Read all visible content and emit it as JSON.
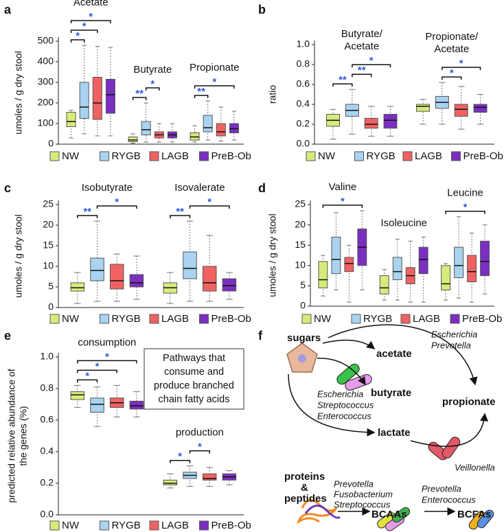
{
  "chart_data": [
    {
      "type": "box",
      "panel": "a",
      "ylabel": "umoles / g dry stool",
      "categories": [
        "Acetate",
        "Butyrate",
        "Propionate"
      ],
      "ylim": [
        0,
        500
      ],
      "yticks": [
        0,
        100,
        200,
        300,
        400,
        500
      ],
      "series": [
        {
          "name": "NW",
          "color": "#d5ec7c",
          "values": [
            [
              30,
              85,
              110,
              155,
              165
            ],
            [
              5,
              12,
              20,
              35,
              50
            ],
            [
              10,
              20,
              35,
              55,
              90
            ]
          ]
        },
        {
          "name": "RYGB",
          "color": "#a9d3f0",
          "values": [
            [
              50,
              125,
              180,
              300,
              480
            ],
            [
              10,
              45,
              70,
              110,
              200
            ],
            [
              20,
              60,
              80,
              140,
              210
            ]
          ]
        },
        {
          "name": "LAGB",
          "color": "#f06262",
          "values": [
            [
              40,
              120,
              200,
              325,
              475
            ],
            [
              10,
              30,
              45,
              60,
              100
            ],
            [
              15,
              40,
              60,
              100,
              180
            ]
          ]
        },
        {
          "name": "PreB-Ob",
          "color": "#7a2fc0",
          "values": [
            [
              40,
              150,
              240,
              315,
              470
            ],
            [
              10,
              30,
              45,
              60,
              100
            ],
            [
              20,
              55,
              75,
              100,
              160
            ]
          ]
        }
      ],
      "annotations": [
        {
          "group": 0,
          "from": 0,
          "to": 1,
          "label": "*"
        },
        {
          "group": 0,
          "from": 0,
          "to": 2,
          "label": "*"
        },
        {
          "group": 0,
          "from": 0,
          "to": 3,
          "label": "*"
        },
        {
          "group": 1,
          "from": 0,
          "to": 1,
          "label": "**"
        },
        {
          "group": 1,
          "from": 1,
          "to": 2,
          "label": "*"
        },
        {
          "group": 2,
          "from": 0,
          "to": 1,
          "label": "**"
        },
        {
          "group": 2,
          "from": 0,
          "to": 3,
          "label": "*"
        }
      ]
    },
    {
      "type": "box",
      "panel": "b",
      "ylabel": "ratio",
      "categories": [
        [
          "Butyrate/",
          "Acetate"
        ],
        [
          "Propionate/",
          "Acetate"
        ]
      ],
      "ylim": [
        0,
        1
      ],
      "yticks": [
        {
          "value": 0,
          "label": "0.0"
        },
        0.2,
        0.4,
        0.6,
        0.8,
        {
          "value": 1,
          "label": "1.0"
        }
      ],
      "series": [
        {
          "name": "NW",
          "color": "#d5ec7c",
          "values": [
            [
              0.05,
              0.18,
              0.24,
              0.3,
              0.35
            ],
            [
              0.2,
              0.33,
              0.38,
              0.4,
              0.45
            ]
          ]
        },
        {
          "name": "RYGB",
          "color": "#a9d3f0",
          "values": [
            [
              0.1,
              0.28,
              0.34,
              0.4,
              0.55
            ],
            [
              0.2,
              0.36,
              0.42,
              0.48,
              0.62
            ]
          ]
        },
        {
          "name": "LAGB",
          "color": "#f06262",
          "values": [
            [
              0.08,
              0.16,
              0.2,
              0.26,
              0.38
            ],
            [
              0.15,
              0.28,
              0.35,
              0.4,
              0.58
            ]
          ]
        },
        {
          "name": "PreB-Ob",
          "color": "#7a2fc0",
          "values": [
            [
              0.08,
              0.16,
              0.24,
              0.3,
              0.38
            ],
            [
              0.2,
              0.32,
              0.37,
              0.4,
              0.5
            ]
          ]
        }
      ],
      "annotations": [
        {
          "group": 0,
          "from": 0,
          "to": 1,
          "label": "**"
        },
        {
          "group": 0,
          "from": 1,
          "to": 2,
          "label": "**"
        },
        {
          "group": 0,
          "from": 1,
          "to": 3,
          "label": "*"
        },
        {
          "group": 1,
          "from": 1,
          "to": 2,
          "label": "*"
        },
        {
          "group": 1,
          "from": 1,
          "to": 3,
          "label": "*"
        }
      ]
    },
    {
      "type": "box",
      "panel": "c",
      "ylabel": "umoles / g dry stool",
      "categories": [
        "Isobutyrate",
        "Isovalerate"
      ],
      "ylim": [
        0,
        25
      ],
      "yticks": [
        0,
        5,
        10,
        15,
        20,
        25
      ],
      "series": [
        {
          "name": "NW",
          "color": "#d5ec7c",
          "values": [
            [
              1,
              4,
              4.8,
              6,
              8.5
            ],
            [
              1,
              3.5,
              4.8,
              6,
              8.5
            ]
          ]
        },
        {
          "name": "RYGB",
          "color": "#a9d3f0",
          "values": [
            [
              1.5,
              6.5,
              9,
              12,
              21
            ],
            [
              1.5,
              7,
              9.5,
              13.5,
              21
            ]
          ]
        },
        {
          "name": "LAGB",
          "color": "#f06262",
          "values": [
            [
              1.5,
              4.5,
              6.5,
              10.5,
              13
            ],
            [
              1.5,
              4,
              6,
              10,
              17.5
            ]
          ]
        },
        {
          "name": "PreB-Ob",
          "color": "#7a2fc0",
          "values": [
            [
              2,
              5,
              6,
              8,
              12.5
            ],
            [
              2,
              4,
              5.3,
              7,
              8.5
            ]
          ]
        }
      ],
      "annotations": [
        {
          "group": 0,
          "from": 0,
          "to": 1,
          "label": "**"
        },
        {
          "group": 0,
          "from": 1,
          "to": 3,
          "label": "*"
        },
        {
          "group": 1,
          "from": 0,
          "to": 1,
          "label": "**"
        },
        {
          "group": 1,
          "from": 1,
          "to": 3,
          "label": "*"
        }
      ]
    },
    {
      "type": "box",
      "panel": "d",
      "ylabel": "umoles / g dry stool",
      "categories": [
        "Valine",
        "Isoleucine",
        "Leucine"
      ],
      "ylim": [
        0,
        25
      ],
      "yticks": [
        0,
        5,
        10,
        15,
        20,
        25
      ],
      "series": [
        {
          "name": "NW",
          "color": "#d5ec7c",
          "values": [
            [
              2.5,
              4.5,
              6.5,
              11,
              12.5
            ],
            [
              1.5,
              3,
              4.5,
              7.5,
              9
            ],
            [
              1.5,
              4,
              5.5,
              10,
              10.5
            ]
          ]
        },
        {
          "name": "RYGB",
          "color": "#a9d3f0",
          "values": [
            [
              4,
              8,
              11.5,
              17,
              23
            ],
            [
              1.5,
              6.5,
              8.5,
              12,
              16.5
            ],
            [
              2,
              7,
              10,
              14.5,
              22
            ]
          ]
        },
        {
          "name": "LAGB",
          "color": "#f06262",
          "values": [
            [
              1,
              8.5,
              10.5,
              12,
              15
            ],
            [
              1,
              5.5,
              7.5,
              9.5,
              16
            ],
            [
              1,
              6,
              8.5,
              12.5,
              18
            ]
          ]
        },
        {
          "name": "PreB-Ob",
          "color": "#7a2fc0",
          "values": [
            [
              4,
              10,
              14.5,
              19,
              23.5
            ],
            [
              1,
              8,
              11.5,
              14.5,
              17
            ],
            [
              3,
              7.5,
              11,
              16,
              20
            ]
          ]
        }
      ],
      "annotations": [
        {
          "group": 0,
          "from": 0,
          "to": 3,
          "label": "*"
        },
        {
          "group": 2,
          "from": 0,
          "to": 3,
          "label": "*"
        }
      ]
    },
    {
      "type": "box",
      "panel": "e",
      "ylabel": [
        "predicted relative abundance of",
        "the genes (%)"
      ],
      "categories": [
        "consumption",
        "production"
      ],
      "ylim": [
        0,
        1
      ],
      "yticks": [
        {
          "value": 0,
          "label": "0.0"
        },
        0.2,
        0.4,
        0.6,
        0.8,
        {
          "value": 1,
          "label": "1.0"
        }
      ],
      "note": [
        "Pathways that",
        "consume and",
        "produce branched",
        "chain fatty acids"
      ],
      "series": [
        {
          "name": "NW",
          "color": "#d5ec7c",
          "values": [
            [
              0.68,
              0.73,
              0.76,
              0.78,
              0.82
            ],
            [
              0.17,
              0.19,
              0.2,
              0.22,
              0.26
            ]
          ]
        },
        {
          "name": "RYGB",
          "color": "#a9d3f0",
          "values": [
            [
              0.56,
              0.65,
              0.7,
              0.74,
              0.81
            ],
            [
              0.18,
              0.23,
              0.25,
              0.27,
              0.31
            ]
          ]
        },
        {
          "name": "LAGB",
          "color": "#f06262",
          "values": [
            [
              0.62,
              0.68,
              0.71,
              0.74,
              0.82
            ],
            [
              0.18,
              0.22,
              0.23,
              0.26,
              0.3
            ]
          ]
        },
        {
          "name": "PreB-Ob",
          "color": "#7a2fc0",
          "values": [
            [
              0.62,
              0.67,
              0.69,
              0.72,
              0.78
            ],
            [
              0.19,
              0.22,
              0.24,
              0.26,
              0.28
            ]
          ]
        }
      ],
      "annotations": [
        {
          "group": 0,
          "from": 0,
          "to": 1,
          "label": "*"
        },
        {
          "group": 0,
          "from": 0,
          "to": 2,
          "label": "*"
        },
        {
          "group": 0,
          "from": 0,
          "to": 3,
          "label": "*"
        },
        {
          "group": 1,
          "from": 0,
          "to": 1,
          "label": "*"
        },
        {
          "group": 1,
          "from": 1,
          "to": 2,
          "label": "*"
        }
      ]
    }
  ],
  "diagram": {
    "panel": "f",
    "sugars": "sugars",
    "acetate": "acetate",
    "butyrate": "butyrate",
    "propionate": "propionate",
    "lactate": "lactate",
    "top_bacteria": [
      "Escherichia",
      "Prevotella"
    ],
    "mid_bacteria": [
      "Escherichia",
      "Streptococcus",
      "Enterococcus"
    ],
    "lactate_bacteria": "Veillonella",
    "proteins": [
      "proteins",
      "&",
      "peptides"
    ],
    "bcaa_bacteria": [
      "Prevotella",
      "Fusobacterium",
      "Streptococcus"
    ],
    "bcaas": "BCAAs",
    "bcfa_bacteria": [
      "Prevotella",
      "Enterococcus"
    ],
    "bcfas": "BCFAs"
  }
}
